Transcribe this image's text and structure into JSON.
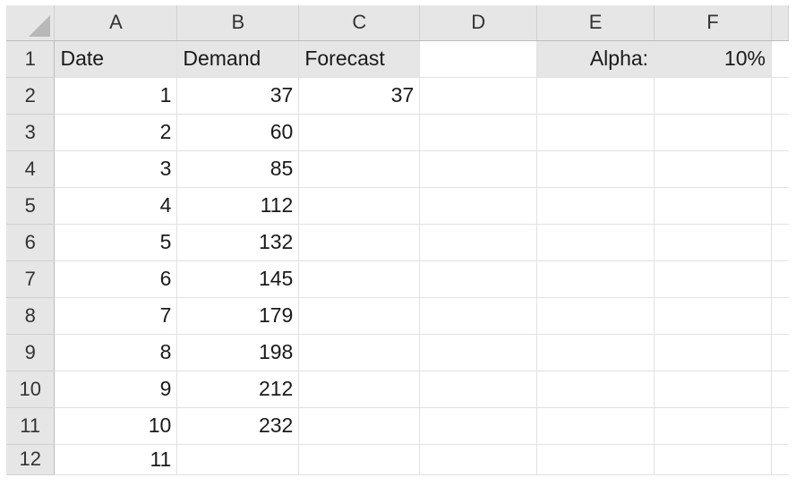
{
  "columns": [
    "A",
    "B",
    "C",
    "D",
    "E",
    "F"
  ],
  "rows": [
    {
      "num": "1",
      "a": "Date",
      "b": "Demand",
      "c": "Forecast",
      "d": "",
      "e": "Alpha:",
      "f": "10%"
    },
    {
      "num": "2",
      "a": "1",
      "b": "37",
      "c": "37",
      "d": "",
      "e": "",
      "f": ""
    },
    {
      "num": "3",
      "a": "2",
      "b": "60",
      "c": "",
      "d": "",
      "e": "",
      "f": ""
    },
    {
      "num": "4",
      "a": "3",
      "b": "85",
      "c": "",
      "d": "",
      "e": "",
      "f": ""
    },
    {
      "num": "5",
      "a": "4",
      "b": "112",
      "c": "",
      "d": "",
      "e": "",
      "f": ""
    },
    {
      "num": "6",
      "a": "5",
      "b": "132",
      "c": "",
      "d": "",
      "e": "",
      "f": ""
    },
    {
      "num": "7",
      "a": "6",
      "b": "145",
      "c": "",
      "d": "",
      "e": "",
      "f": ""
    },
    {
      "num": "8",
      "a": "7",
      "b": "179",
      "c": "",
      "d": "",
      "e": "",
      "f": ""
    },
    {
      "num": "9",
      "a": "8",
      "b": "198",
      "c": "",
      "d": "",
      "e": "",
      "f": ""
    },
    {
      "num": "10",
      "a": "9",
      "b": "212",
      "c": "",
      "d": "",
      "e": "",
      "f": ""
    },
    {
      "num": "11",
      "a": "10",
      "b": "232",
      "c": "",
      "d": "",
      "e": "",
      "f": ""
    },
    {
      "num": "12",
      "a": "11",
      "b": "",
      "c": "",
      "d": "",
      "e": "",
      "f": ""
    }
  ]
}
